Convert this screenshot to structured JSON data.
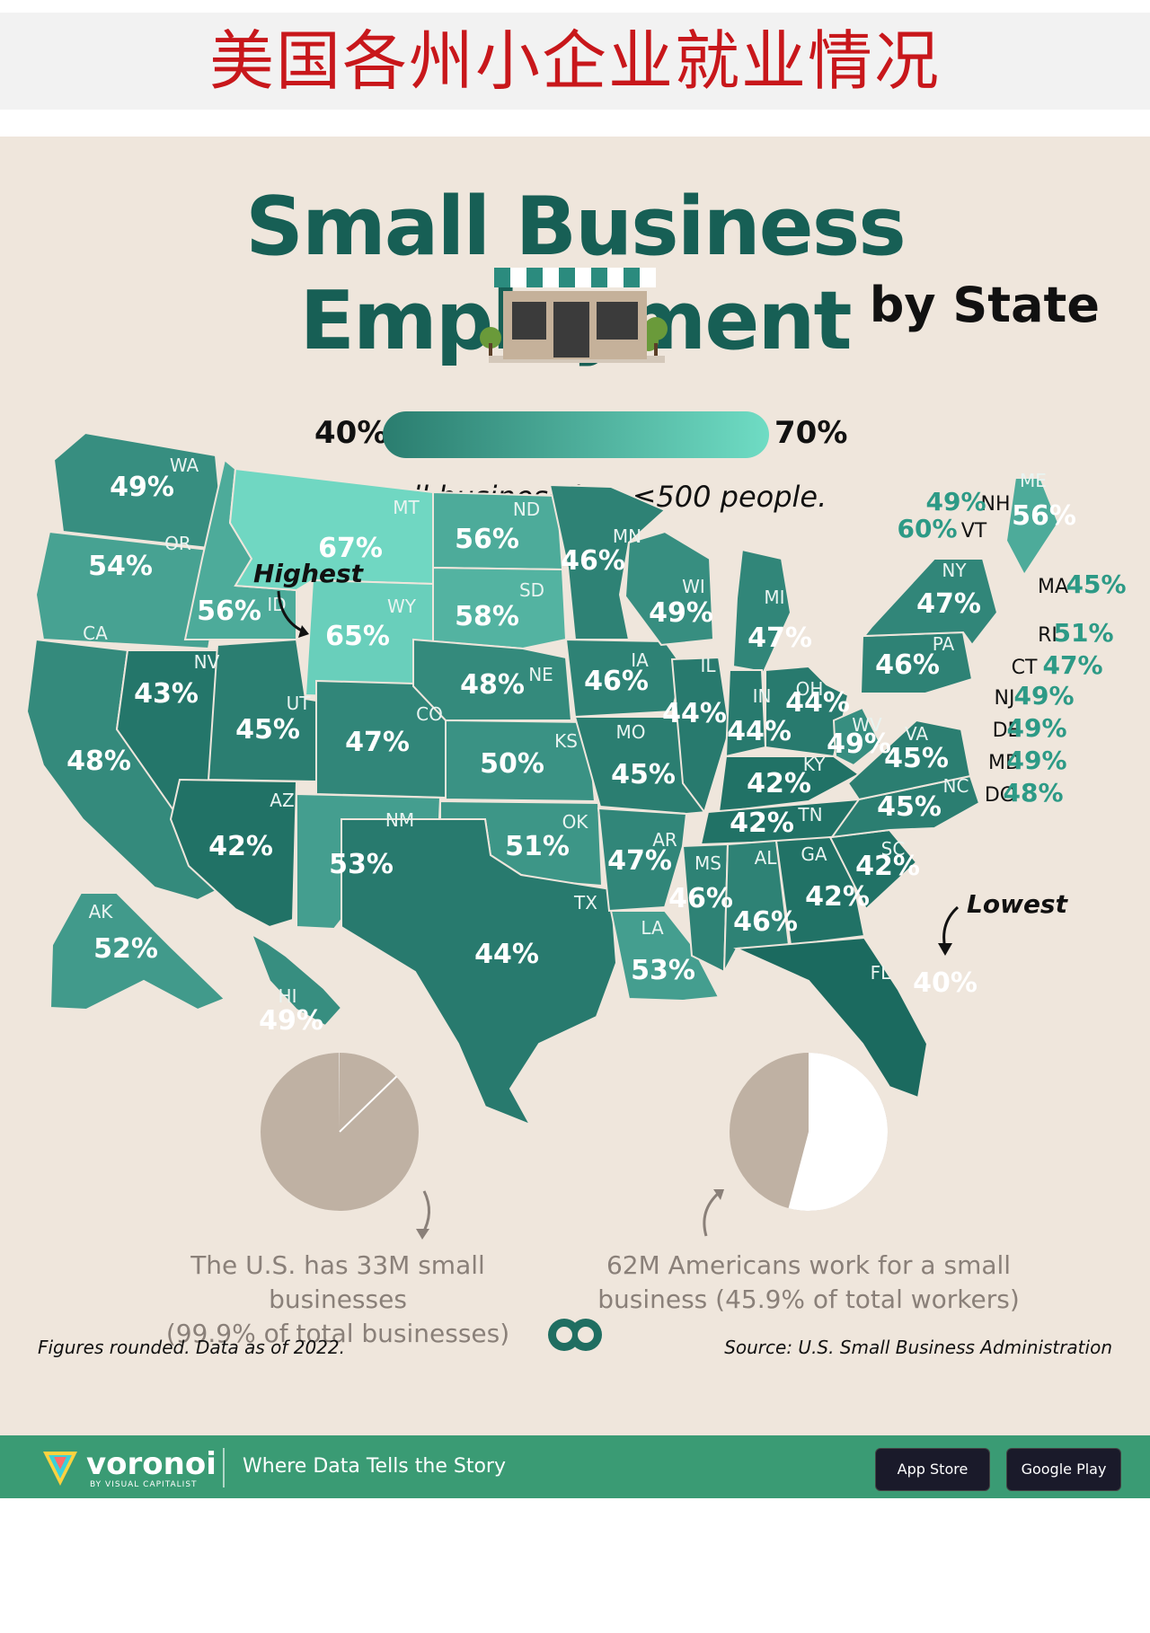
{
  "banner": {
    "title": "美国各州小企业就业情况"
  },
  "header": {
    "title": "Small Business Employment",
    "subtitle": "by State"
  },
  "legend": {
    "min_label": "40%",
    "max_label": "70%",
    "note": "A small business has ≤500 people.",
    "min_value": 40,
    "max_value": 70,
    "color_low": "#1b6a5f",
    "color_high": "#79e3cd"
  },
  "callouts": {
    "highest": "Highest",
    "lowest": "Lowest"
  },
  "states": [
    {
      "code": "WA",
      "value": "49%",
      "v": 49
    },
    {
      "code": "OR",
      "value": "54%",
      "v": 54
    },
    {
      "code": "CA",
      "value": "48%",
      "v": 48
    },
    {
      "code": "ID",
      "value": "56%",
      "v": 56
    },
    {
      "code": "NV",
      "value": "43%",
      "v": 43
    },
    {
      "code": "MT",
      "value": "67%",
      "v": 67
    },
    {
      "code": "WY",
      "value": "65%",
      "v": 65
    },
    {
      "code": "UT",
      "value": "45%",
      "v": 45
    },
    {
      "code": "AZ",
      "value": "42%",
      "v": 42
    },
    {
      "code": "CO",
      "value": "47%",
      "v": 47
    },
    {
      "code": "NM",
      "value": "53%",
      "v": 53
    },
    {
      "code": "ND",
      "value": "56%",
      "v": 56
    },
    {
      "code": "SD",
      "value": "58%",
      "v": 58
    },
    {
      "code": "NE",
      "value": "48%",
      "v": 48
    },
    {
      "code": "KS",
      "value": "50%",
      "v": 50
    },
    {
      "code": "OK",
      "value": "51%",
      "v": 51
    },
    {
      "code": "TX",
      "value": "44%",
      "v": 44
    },
    {
      "code": "MN",
      "value": "46%",
      "v": 46
    },
    {
      "code": "IA",
      "value": "46%",
      "v": 46
    },
    {
      "code": "MO",
      "value": "45%",
      "v": 45
    },
    {
      "code": "AR",
      "value": "47%",
      "v": 47
    },
    {
      "code": "LA",
      "value": "53%",
      "v": 53
    },
    {
      "code": "WI",
      "value": "49%",
      "v": 49
    },
    {
      "code": "IL",
      "value": "44%",
      "v": 44
    },
    {
      "code": "MI",
      "value": "47%",
      "v": 47
    },
    {
      "code": "IN",
      "value": "44%",
      "v": 44
    },
    {
      "code": "OH",
      "value": "44%",
      "v": 44
    },
    {
      "code": "KY",
      "value": "42%",
      "v": 42
    },
    {
      "code": "TN",
      "value": "42%",
      "v": 42
    },
    {
      "code": "MS",
      "value": "46%",
      "v": 46
    },
    {
      "code": "AL",
      "value": "46%",
      "v": 46
    },
    {
      "code": "GA",
      "value": "42%",
      "v": 42
    },
    {
      "code": "FL",
      "value": "40%",
      "v": 40
    },
    {
      "code": "SC",
      "value": "42%",
      "v": 42
    },
    {
      "code": "NC",
      "value": "45%",
      "v": 45
    },
    {
      "code": "VA",
      "value": "45%",
      "v": 45
    },
    {
      "code": "WV",
      "value": "49%",
      "v": 49
    },
    {
      "code": "PA",
      "value": "46%",
      "v": 46
    },
    {
      "code": "NY",
      "value": "47%",
      "v": 47
    },
    {
      "code": "ME",
      "value": "56%",
      "v": 56
    },
    {
      "code": "AK",
      "value": "52%",
      "v": 52
    },
    {
      "code": "HI",
      "value": "49%",
      "v": 49
    }
  ],
  "side_states": [
    {
      "code": "NH",
      "value": "49%"
    },
    {
      "code": "VT",
      "value": "60%"
    },
    {
      "code": "MA",
      "value": "45%"
    },
    {
      "code": "RI",
      "value": "51%"
    },
    {
      "code": "CT",
      "value": "47%"
    },
    {
      "code": "NJ",
      "value": "49%"
    },
    {
      "code": "DE",
      "value": "49%"
    },
    {
      "code": "MD",
      "value": "49%"
    },
    {
      "code": "DC",
      "value": "48%"
    }
  ],
  "pies": [
    {
      "text_line1": "The U.S. has 33M small businesses",
      "text_line2": "(99.9% of total businesses)",
      "fraction": 0.999
    },
    {
      "text_line1": "62M Americans work for a small",
      "text_line2": "business (45.9% of total workers)",
      "fraction": 0.459
    }
  ],
  "footer": {
    "footnote": "Figures rounded. Data as of 2022.",
    "source": "Source: U.S. Small Business Administration",
    "brand": "voronoi",
    "brand_sub": "BY VISUAL CAPITALIST",
    "tagline": "Where Data Tells the Story",
    "app_store": "App Store",
    "google_play": "Google Play"
  }
}
